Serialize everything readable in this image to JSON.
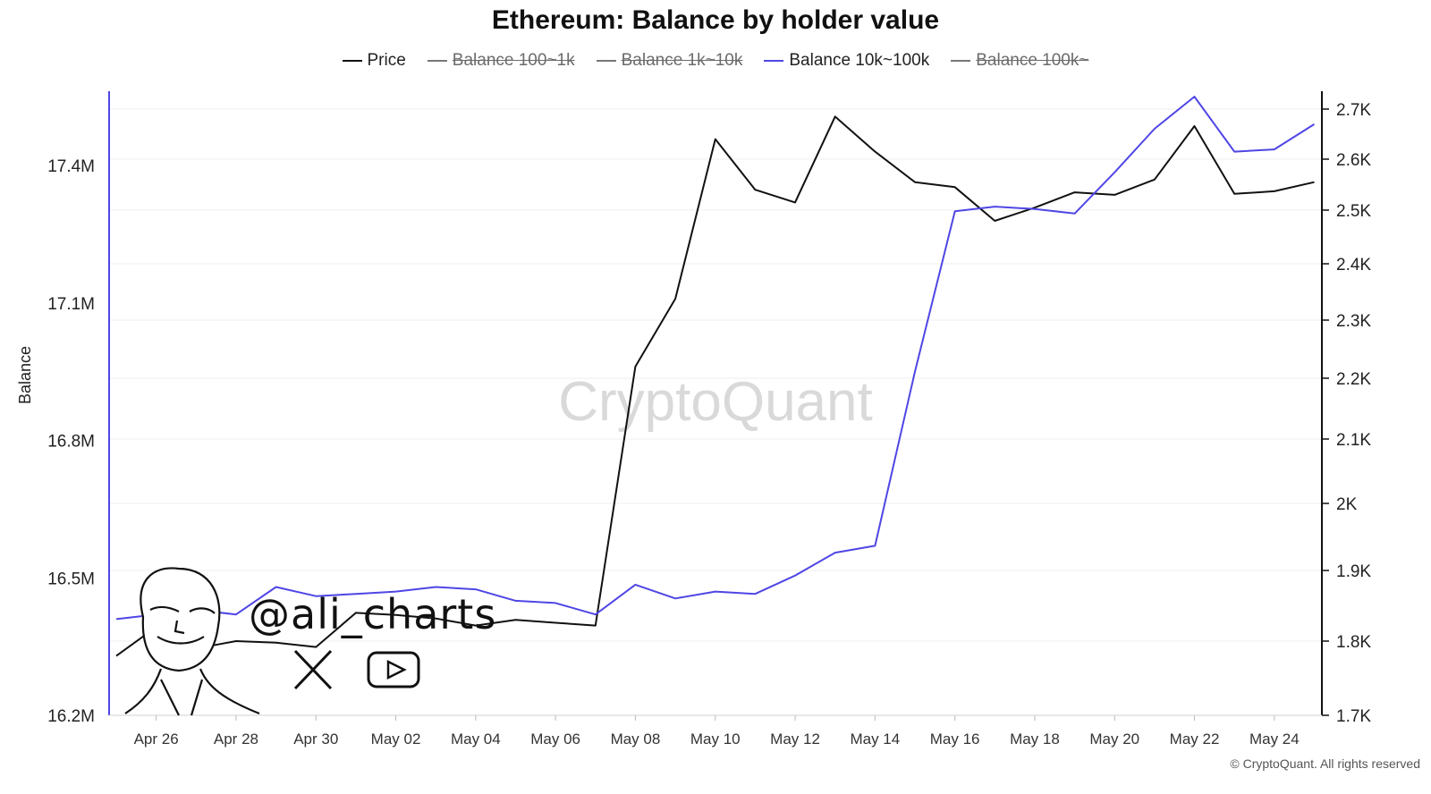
{
  "chart_data": {
    "type": "line",
    "title": "Ethereum: Balance by holder value",
    "ylabel_left": "Balance",
    "x": [
      "Apr 25",
      "Apr 26",
      "Apr 27",
      "Apr 28",
      "Apr 29",
      "Apr 30",
      "May 01",
      "May 02",
      "May 03",
      "May 04",
      "May 05",
      "May 06",
      "May 07",
      "May 08",
      "May 09",
      "May 10",
      "May 11",
      "May 12",
      "May 13",
      "May 14",
      "May 15",
      "May 16",
      "May 17",
      "May 18",
      "May 19",
      "May 20",
      "May 21",
      "May 22",
      "May 23",
      "May 24",
      "May 25"
    ],
    "x_tick_labels": [
      "Apr 26",
      "Apr 28",
      "Apr 30",
      "May 02",
      "May 04",
      "May 06",
      "May 08",
      "May 10",
      "May 12",
      "May 14",
      "May 16",
      "May 18",
      "May 20",
      "May 22",
      "May 24"
    ],
    "y_left": {
      "range": [
        16.2,
        17.55
      ],
      "unit": "M",
      "ticks": [
        "16.2M",
        "16.5M",
        "16.8M",
        "17.1M",
        "17.4M"
      ],
      "tick_values": [
        16.2,
        16.5,
        16.8,
        17.1,
        17.4
      ]
    },
    "y_right": {
      "range": [
        1700,
        2700
      ],
      "ticks": [
        "1.7K",
        "1.8K",
        "1.9K",
        "2K",
        "2.1K",
        "2.2K",
        "2.3K",
        "2.4K",
        "2.5K",
        "2.6K",
        "2.7K"
      ],
      "tick_values": [
        1700,
        1800,
        1900,
        2000,
        2100,
        2200,
        2300,
        2400,
        2500,
        2600,
        2700
      ]
    },
    "legend": [
      {
        "name": "Price",
        "color": "#111111",
        "active": true
      },
      {
        "name": "Balance 100~1k",
        "color": "#777777",
        "active": false
      },
      {
        "name": "Balance 1k~10k",
        "color": "#777777",
        "active": false
      },
      {
        "name": "Balance 10k~100k",
        "color": "#4f46e5",
        "active": true
      },
      {
        "name": "Balance 100k~",
        "color": "#777777",
        "active": false
      }
    ],
    "series": [
      {
        "name": "Price",
        "axis": "right",
        "color": "#111111",
        "values": [
          1780,
          1820,
          1790,
          1800,
          1798,
          1792,
          1840,
          1837,
          1832,
          1822,
          1830,
          1826,
          1822,
          2220,
          2338,
          2640,
          2540,
          2515,
          2685,
          2615,
          2555,
          2545,
          2480,
          2505,
          2535,
          2530,
          2560,
          2666,
          2532,
          2537,
          2555
        ]
      },
      {
        "name": "Balance 10k~100k",
        "axis": "left",
        "color": "#4f46e5",
        "values": [
          16.41,
          16.42,
          16.43,
          16.42,
          16.48,
          16.46,
          16.465,
          16.47,
          16.48,
          16.475,
          16.45,
          16.445,
          16.42,
          16.485,
          16.455,
          16.47,
          16.465,
          16.505,
          16.555,
          16.57,
          16.95,
          17.3,
          17.31,
          17.305,
          17.295,
          17.385,
          17.48,
          17.55,
          17.43,
          17.435,
          17.49
        ]
      }
    ]
  },
  "watermark": {
    "brand": "CryptoQuant",
    "handle": "@ali_charts"
  },
  "footer": {
    "copyright": "© CryptoQuant. All rights reserved"
  }
}
